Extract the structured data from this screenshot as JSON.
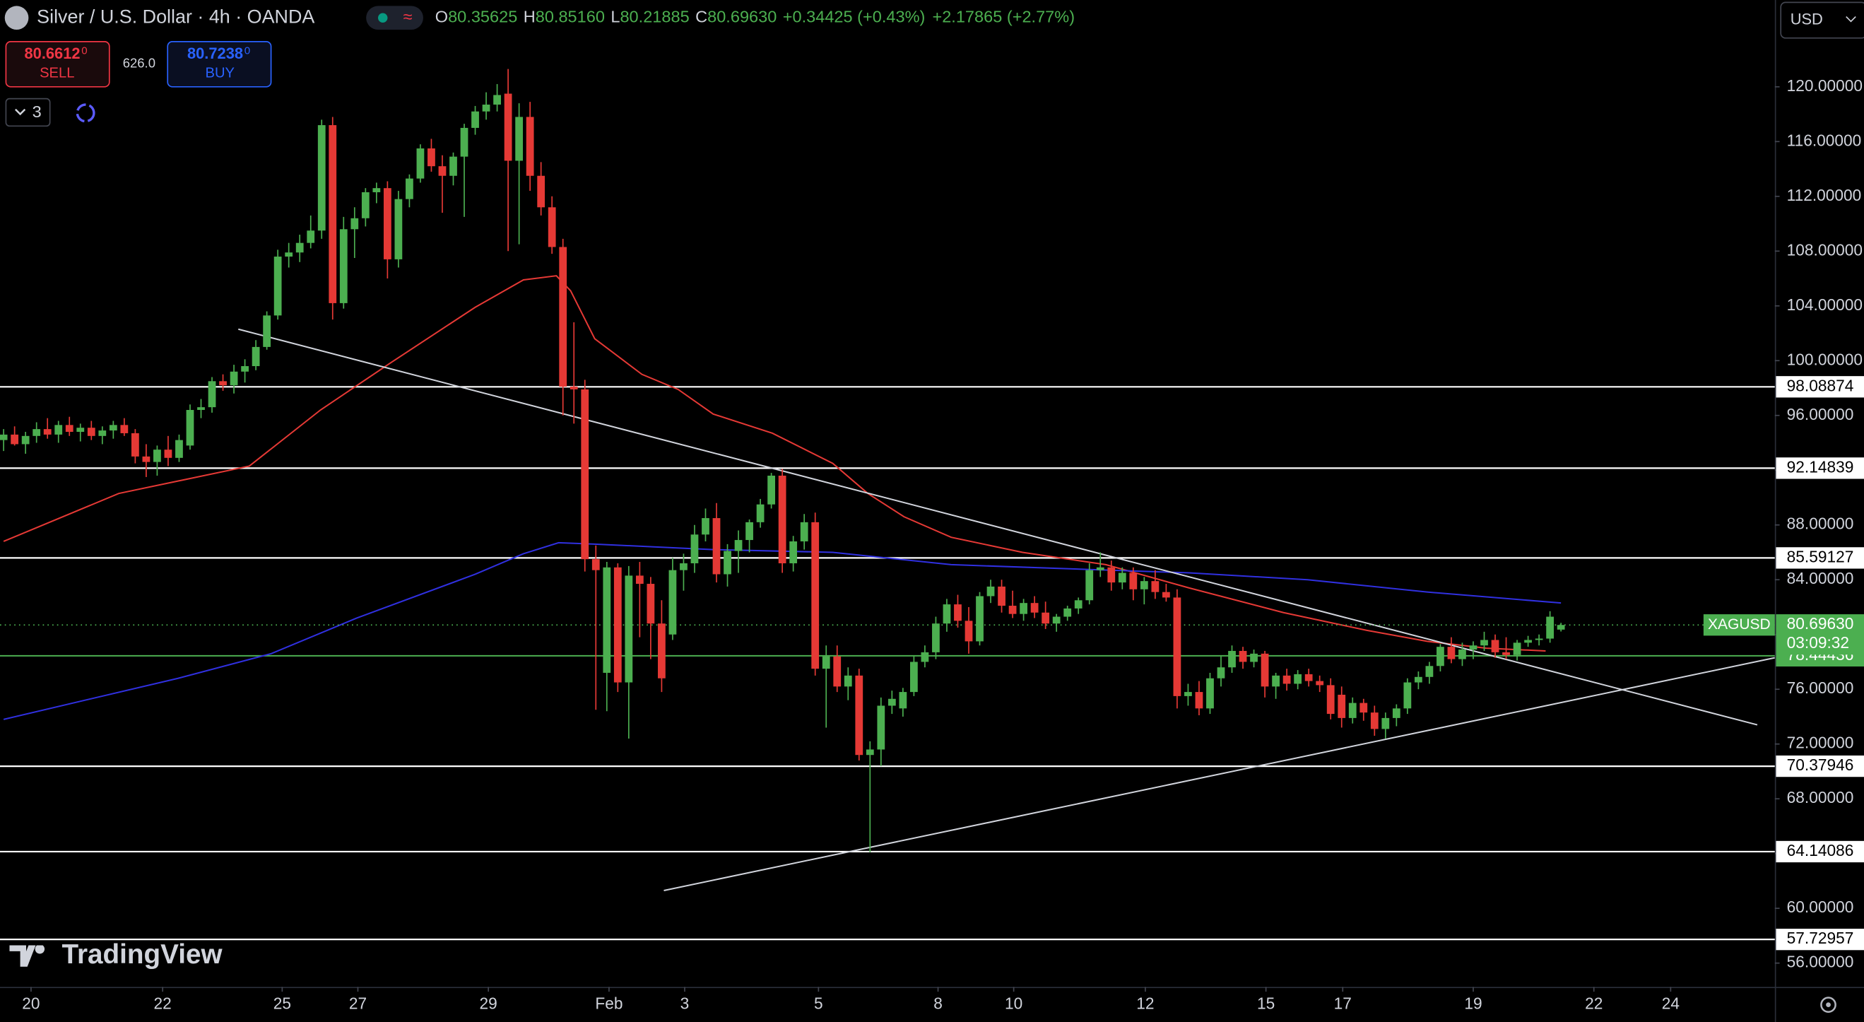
{
  "header": {
    "symbol": "Silver / U.S. Dollar · 4h · OANDA",
    "ohlc": [
      {
        "label": "O",
        "value": "80.35625"
      },
      {
        "label": "H",
        "value": "80.85160"
      },
      {
        "label": "L",
        "value": "80.21885"
      },
      {
        "label": "C",
        "value": "80.69630"
      }
    ],
    "change": "+0.34425 (+0.43%)",
    "change_total": "+2.17865 (+2.77%)"
  },
  "trade": {
    "sell_price": "80.6612",
    "sell_sup": "0",
    "sell": "SELL",
    "spread": "626.0",
    "buy_price": "80.7238",
    "buy_sup": "0",
    "buy": "BUY"
  },
  "indicators_count": "3",
  "currency": "USD",
  "logo": "TradingView",
  "chart_data": {
    "type": "candlestick",
    "up_color": "#4caf50",
    "down_color": "#e53935",
    "candles": [
      [
        94.2,
        95,
        93.4,
        94.6
      ],
      [
        94.6,
        95.2,
        93.8,
        93.9
      ],
      [
        93.9,
        94.8,
        93.2,
        94.5
      ],
      [
        94.5,
        95.5,
        94,
        95
      ],
      [
        95,
        95.8,
        94.3,
        94.6
      ],
      [
        94.6,
        95.6,
        94,
        95.3
      ],
      [
        95.3,
        95.9,
        94.5,
        94.8
      ],
      [
        94.8,
        95.4,
        94.1,
        95.1
      ],
      [
        95.1,
        95.6,
        94.2,
        94.5
      ],
      [
        94.5,
        95.2,
        93.9,
        94.9
      ],
      [
        94.9,
        95.6,
        94.3,
        95.3
      ],
      [
        95.3,
        95.8,
        94.5,
        94.7
      ],
      [
        94.7,
        95,
        92.5,
        93
      ],
      [
        93,
        93.9,
        91.5,
        92.6
      ],
      [
        92.6,
        93.8,
        91.6,
        93.5
      ],
      [
        93.5,
        94.5,
        92.3,
        92.9
      ],
      [
        92.9,
        94.6,
        92.6,
        94.2
      ],
      [
        93.8,
        96.8,
        93.5,
        96.4
      ],
      [
        96.4,
        97.2,
        95.8,
        96.6
      ],
      [
        96.6,
        98.8,
        96.2,
        98.5
      ],
      [
        98.5,
        99,
        97.8,
        98.2
      ],
      [
        98.2,
        99.7,
        97.6,
        99.2
      ],
      [
        99.2,
        100.1,
        98.4,
        99.6
      ],
      [
        99.6,
        101.5,
        99.3,
        101
      ],
      [
        101,
        103.6,
        100.8,
        103.3
      ],
      [
        103.3,
        108.1,
        103,
        107.6
      ],
      [
        107.6,
        108.6,
        106.8,
        107.9
      ],
      [
        107.9,
        109.2,
        107.2,
        108.6
      ],
      [
        108.6,
        110.6,
        108.2,
        109.5
      ],
      [
        109.5,
        117.6,
        108.9,
        117.2
      ],
      [
        117.2,
        117.8,
        103,
        104.2
      ],
      [
        104.2,
        110.5,
        103.8,
        109.6
      ],
      [
        109.6,
        111.2,
        107.5,
        110.4
      ],
      [
        110.4,
        112.6,
        109.8,
        112.3
      ],
      [
        112.3,
        113,
        111.5,
        112.6
      ],
      [
        112.6,
        113.1,
        106,
        107.4
      ],
      [
        107.4,
        112.4,
        106.8,
        111.8
      ],
      [
        111.8,
        113.6,
        111.2,
        113.3
      ],
      [
        113.3,
        115.8,
        113,
        115.5
      ],
      [
        115.5,
        116.2,
        113.8,
        114.2
      ],
      [
        114.2,
        115,
        110.8,
        113.5
      ],
      [
        113.5,
        115.2,
        112.8,
        114.9
      ],
      [
        114.9,
        117.3,
        110.5,
        117
      ],
      [
        117,
        118.6,
        116.5,
        118.2
      ],
      [
        118.2,
        119.6,
        117.6,
        118.7
      ],
      [
        118.7,
        120.2,
        118.2,
        119.4
      ],
      [
        119.5,
        121.3,
        108,
        114.6
      ],
      [
        114.6,
        118.8,
        108.5,
        117.8
      ],
      [
        117.8,
        118.9,
        112.4,
        113.5
      ],
      [
        113.5,
        114.5,
        110.6,
        111.2
      ],
      [
        111.2,
        112,
        107.8,
        108.3
      ],
      [
        108.3,
        108.9,
        96,
        98.1
      ],
      [
        98.1,
        102.8,
        95.4,
        97.9
      ],
      [
        97.9,
        98.6,
        84.6,
        85.5
      ],
      [
        85.5,
        86.5,
        74.5,
        84.7
      ],
      [
        77.2,
        85.3,
        74.4,
        84.9
      ],
      [
        84.9,
        85.2,
        75.8,
        76.5
      ],
      [
        76.5,
        85,
        72.4,
        84.3
      ],
      [
        84.3,
        85.3,
        79.8,
        83.7
      ],
      [
        83.7,
        84.2,
        78.2,
        80.8
      ],
      [
        80.8,
        82.5,
        75.8,
        76.8
      ],
      [
        80,
        85.6,
        79.6,
        84.7
      ],
      [
        84.7,
        85.9,
        83.2,
        85.2
      ],
      [
        85.2,
        88,
        84.5,
        87.3
      ],
      [
        87.3,
        89.2,
        86.8,
        88.5
      ],
      [
        88.5,
        89.6,
        83.8,
        84.4
      ],
      [
        84.4,
        86.6,
        83.5,
        86.1
      ],
      [
        86.1,
        87.6,
        84.5,
        86.9
      ],
      [
        86.9,
        88.4,
        86,
        88.2
      ],
      [
        88.2,
        89.9,
        87.8,
        89.5
      ],
      [
        89.5,
        91.8,
        89.2,
        91.6
      ],
      [
        91.6,
        92.1,
        84.5,
        85.2
      ],
      [
        85.2,
        87.2,
        84.6,
        86.8
      ],
      [
        86.8,
        88.8,
        86.2,
        88.2
      ],
      [
        88.2,
        88.9,
        77,
        77.5
      ],
      [
        77.5,
        79.2,
        73.2,
        78.4
      ],
      [
        78.4,
        79.2,
        75.8,
        76.2
      ],
      [
        76.2,
        77.6,
        75.2,
        77
      ],
      [
        77,
        77.5,
        70.8,
        71.2
      ],
      [
        71.2,
        72.2,
        64.1,
        71.6
      ],
      [
        71.6,
        75.4,
        70.4,
        74.8
      ],
      [
        74.8,
        75.9,
        74.2,
        75.3
      ],
      [
        74.6,
        76.1,
        74,
        75.8
      ],
      [
        75.8,
        78.4,
        75.5,
        78
      ],
      [
        78,
        79.2,
        77.6,
        78.7
      ],
      [
        78.7,
        81.3,
        78.2,
        80.8
      ],
      [
        80.8,
        82.6,
        80.2,
        82.2
      ],
      [
        82.2,
        82.9,
        80.5,
        81
      ],
      [
        81,
        82,
        78.6,
        79.5
      ],
      [
        79.5,
        83.1,
        79.2,
        82.8
      ],
      [
        82.8,
        84,
        82.3,
        83.5
      ],
      [
        83.5,
        84,
        81.6,
        82.1
      ],
      [
        82.1,
        83.2,
        81.2,
        81.5
      ],
      [
        81.5,
        82.6,
        81,
        82.3
      ],
      [
        82.3,
        82.8,
        81.2,
        81.6
      ],
      [
        81.6,
        82.4,
        80.4,
        80.8
      ],
      [
        80.8,
        81.5,
        80.2,
        81.3
      ],
      [
        81.3,
        82.1,
        81,
        81.9
      ],
      [
        81.9,
        82.7,
        81.5,
        82.5
      ],
      [
        82.5,
        85.2,
        82.2,
        84.7
      ],
      [
        84.7,
        86,
        84.2,
        84.9
      ],
      [
        84.9,
        85.4,
        83.2,
        83.8
      ],
      [
        83.8,
        84.9,
        83.3,
        84.5
      ],
      [
        84.5,
        84.9,
        82.5,
        83.3
      ],
      [
        83.3,
        84.2,
        82.2,
        83.9
      ],
      [
        83.9,
        84.7,
        82.6,
        83.1
      ],
      [
        83.1,
        83.7,
        82.4,
        82.7
      ],
      [
        82.7,
        83.3,
        74.6,
        75.5
      ],
      [
        75.5,
        76.4,
        74.8,
        75.8
      ],
      [
        75.8,
        76.6,
        74.1,
        74.6
      ],
      [
        74.6,
        77.2,
        74.2,
        76.8
      ],
      [
        76.8,
        78.4,
        76.2,
        77.6
      ],
      [
        77.6,
        79.2,
        77.2,
        78.8
      ],
      [
        78.8,
        79.1,
        77.5,
        78
      ],
      [
        78,
        78.9,
        77.6,
        78.6
      ],
      [
        78.6,
        78.8,
        75.4,
        76.2
      ],
      [
        76.2,
        77.2,
        75.3,
        77
      ],
      [
        77,
        77.5,
        75.9,
        76.4
      ],
      [
        76.4,
        77.4,
        76,
        77.1
      ],
      [
        77.1,
        77.5,
        76.2,
        76.6
      ],
      [
        76.6,
        77,
        75.8,
        76.3
      ],
      [
        76.3,
        76.8,
        73.8,
        74.2
      ],
      [
        75.6,
        76.2,
        73.2,
        73.9
      ],
      [
        73.9,
        75.4,
        73.5,
        75
      ],
      [
        75,
        75.3,
        73.7,
        74.3
      ],
      [
        74.3,
        74.8,
        72.6,
        73.1
      ],
      [
        73.1,
        74.3,
        72.4,
        73.9
      ],
      [
        73.9,
        74.9,
        73.3,
        74.6
      ],
      [
        74.6,
        76.8,
        74.2,
        76.5
      ],
      [
        76.5,
        77.3,
        76,
        76.9
      ],
      [
        76.9,
        78,
        76.4,
        77.7
      ],
      [
        77.7,
        79.3,
        77.3,
        79.1
      ],
      [
        79.1,
        79.8,
        77.9,
        78.2
      ],
      [
        78.2,
        79.4,
        77.7,
        78.9
      ],
      [
        78.9,
        79.5,
        78.2,
        79.2
      ],
      [
        79.2,
        80.2,
        78.8,
        79.6
      ],
      [
        79.6,
        80,
        78.3,
        78.7
      ],
      [
        78.7,
        79.8,
        78.2,
        78.5
      ],
      [
        78.5,
        79.6,
        78.1,
        79.4
      ],
      [
        79.4,
        79.9,
        79.1,
        79.6
      ],
      [
        79.6,
        80,
        79.2,
        79.7
      ],
      [
        79.7,
        81.7,
        79.4,
        81.3
      ],
      [
        80.35625,
        80.8516,
        80.21885,
        80.6963
      ]
    ],
    "moving_averages": [
      {
        "color": "#e53935",
        "x": [
          0,
          10.5,
          22.4,
          28.9,
          35.4,
          43,
          47.4,
          50.4,
          51.7,
          53.9,
          58.2,
          61.5,
          64.7,
          70.1,
          75.6,
          78.8,
          82.1,
          86.4,
          92.9,
          100.5,
          108.1,
          116.7,
          124.3,
          129.8,
          135.2,
          140.6
        ],
        "values": [
          86.8,
          90.3,
          92.3,
          96.4,
          99.9,
          103.9,
          105.9,
          106.2,
          105.1,
          101.6,
          99,
          97.9,
          96.1,
          94.7,
          92.5,
          90.3,
          88.6,
          87.1,
          86,
          85.1,
          83.4,
          81.6,
          80.3,
          79.5,
          79,
          78.8
        ]
      },
      {
        "color": "#3030e0",
        "x": [
          0,
          15.9,
          24.4,
          32.2,
          43,
          47.4,
          50.6,
          53.9,
          59.3,
          64.7,
          75.6,
          86.4,
          97.2,
          108.1,
          118.9,
          129.8,
          142
        ],
        "values": [
          73.8,
          76.8,
          78.6,
          81.2,
          84.4,
          85.9,
          86.7,
          86.6,
          86.4,
          86.2,
          86,
          85.1,
          84.8,
          84.5,
          84,
          83.1,
          82.3
        ]
      }
    ],
    "trendlines": [
      {
        "x": [
          21.4,
          159.9
        ],
        "values": [
          102.3,
          73.4
        ]
      },
      {
        "x": [
          60.2,
          161.5
        ],
        "values": [
          61.3,
          78.3
        ]
      }
    ],
    "levels": [
      98.08874,
      92.14839,
      85.59127,
      70.37946,
      64.14086,
      57.72957
    ],
    "support": {
      "value": 78.44436,
      "color": "#4caf50"
    },
    "last_price": {
      "name": "XAGUSD",
      "value": 80.6963,
      "label": "80.69630",
      "countdown": "03:09:32",
      "color": "#4caf50"
    },
    "ylim": [
      54.26,
      126.34
    ],
    "yticks": [
      {
        "value": 56,
        "label": "56.00000"
      },
      {
        "value": 60,
        "label": "60.00000"
      },
      {
        "value": 64,
        "label": "64.00000"
      },
      {
        "value": 68,
        "label": "68.00000"
      },
      {
        "value": 72,
        "label": "72.00000"
      },
      {
        "value": 76,
        "label": "76.00000"
      },
      {
        "value": 80,
        "label": "80.00000"
      },
      {
        "value": 84,
        "label": "84.00000"
      },
      {
        "value": 88,
        "label": "88.00000"
      },
      {
        "value": 92,
        "label": "92.00000"
      },
      {
        "value": 96,
        "label": "96.00000"
      },
      {
        "value": 100,
        "label": "100.00000"
      },
      {
        "value": 104,
        "label": "104.00000"
      },
      {
        "value": 108,
        "label": "108.00000"
      },
      {
        "value": 112,
        "label": "112.00000"
      },
      {
        "value": 116,
        "label": "116.00000"
      },
      {
        "value": 120,
        "label": "120.00000"
      }
    ],
    "xlim": [
      -0.33,
      161.5
    ],
    "xticks": [
      {
        "value": 2.5,
        "label": "20"
      },
      {
        "value": 14.5,
        "label": "22"
      },
      {
        "value": 25.4,
        "label": "25"
      },
      {
        "value": 32.3,
        "label": "27"
      },
      {
        "value": 44.2,
        "label": "29"
      },
      {
        "value": 55.2,
        "label": "Feb"
      },
      {
        "value": 62.1,
        "label": "3"
      },
      {
        "value": 74.3,
        "label": "5"
      },
      {
        "value": 85.2,
        "label": "8"
      },
      {
        "value": 92.1,
        "label": "10"
      },
      {
        "value": 104.1,
        "label": "12"
      },
      {
        "value": 115.1,
        "label": "15"
      },
      {
        "value": 122.1,
        "label": "17"
      },
      {
        "value": 134,
        "label": "19"
      },
      {
        "value": 145,
        "label": "22"
      },
      {
        "value": 152,
        "label": "24"
      }
    ]
  }
}
